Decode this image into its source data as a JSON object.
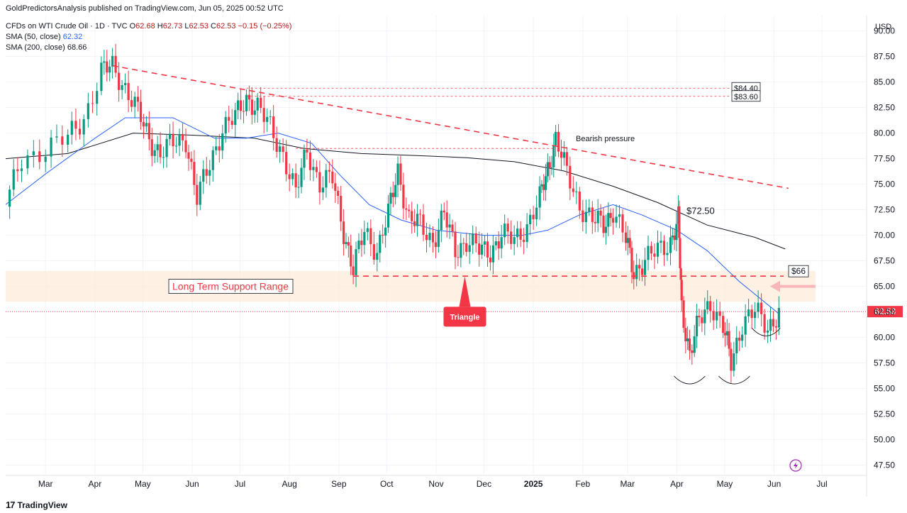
{
  "header": {
    "publisher": "GoldPredictorsAnalysis published on TradingView.com, Jun 05, 2025 00:52 UTC",
    "symbol": "CFDs on WTI Crude Oil · 1D · TVC",
    "ohlc": {
      "o_label": "O",
      "o": "62.68",
      "h_label": "H",
      "h": "62.73",
      "l_label": "L",
      "l": "62.53",
      "c_label": "C",
      "c": "62.53",
      "change": "−0.15 (−0.25%)"
    },
    "sma50_label": "SMA (50, close)",
    "sma50_value": "62.32",
    "sma200_label": "SMA (200, close)",
    "sma200_value": "68.66"
  },
  "branding": {
    "logo": "17",
    "name": "TradingView"
  },
  "colors": {
    "up": "#089981",
    "down": "#f23645",
    "sma50": "#2962ff",
    "sma200": "#131722",
    "resistance": "#f23645",
    "support_zone": "#fdebd8",
    "price_tag": "#f23645"
  },
  "chart_data": {
    "type": "candlestick",
    "title": "",
    "currency": "USD",
    "y_range": [
      46.5,
      91.5
    ],
    "y_ticks": [
      "90.00",
      "87.50",
      "85.00",
      "82.50",
      "80.00",
      "77.50",
      "75.00",
      "72.50",
      "70.00",
      "67.50",
      "65.00",
      "62.50",
      "60.00",
      "57.50",
      "55.00",
      "52.50",
      "50.00",
      "47.50"
    ],
    "x_months": [
      {
        "label": "Mar",
        "date": "2024-03-01"
      },
      {
        "label": "Apr",
        "date": "2024-04-01"
      },
      {
        "label": "May",
        "date": "2024-05-01"
      },
      {
        "label": "Jun",
        "date": "2024-06-01"
      },
      {
        "label": "Jul",
        "date": "2024-07-01"
      },
      {
        "label": "Aug",
        "date": "2024-08-01"
      },
      {
        "label": "Sep",
        "date": "2024-09-01"
      },
      {
        "label": "Oct",
        "date": "2024-10-01"
      },
      {
        "label": "Nov",
        "date": "2024-11-01"
      },
      {
        "label": "Dec",
        "date": "2024-12-01"
      },
      {
        "label": "2025",
        "date": "2025-01-01",
        "bold": true
      },
      {
        "label": "Feb",
        "date": "2025-02-01"
      },
      {
        "label": "Mar",
        "date": "2025-03-01"
      },
      {
        "label": "Apr",
        "date": "2025-04-01"
      },
      {
        "label": "May",
        "date": "2025-05-01"
      },
      {
        "label": "Jun",
        "date": "2025-06-01"
      },
      {
        "label": "Jul",
        "date": "2025-07-01"
      }
    ],
    "price_path": [
      [
        "2024-02-05",
        72.8
      ],
      [
        "2024-02-15",
        77.5
      ],
      [
        "2024-03-01",
        78.5
      ],
      [
        "2024-03-15",
        79.5
      ],
      [
        "2024-03-25",
        81.5
      ],
      [
        "2024-04-05",
        86.0
      ],
      [
        "2024-04-12",
        86.5
      ],
      [
        "2024-04-20",
        84.5
      ],
      [
        "2024-04-28",
        82.0
      ],
      [
        "2024-05-05",
        79.5
      ],
      [
        "2024-05-12",
        78.0
      ],
      [
        "2024-05-20",
        79.0
      ],
      [
        "2024-05-28",
        79.5
      ],
      [
        "2024-06-04",
        73.5
      ],
      [
        "2024-06-12",
        77.0
      ],
      [
        "2024-06-20",
        80.5
      ],
      [
        "2024-06-28",
        81.5
      ],
      [
        "2024-07-05",
        83.5
      ],
      [
        "2024-07-12",
        82.5
      ],
      [
        "2024-07-20",
        80.5
      ],
      [
        "2024-07-28",
        78.0
      ],
      [
        "2024-08-05",
        74.0
      ],
      [
        "2024-08-12",
        78.5
      ],
      [
        "2024-08-20",
        75.0
      ],
      [
        "2024-08-28",
        75.5
      ],
      [
        "2024-09-04",
        70.5
      ],
      [
        "2024-09-10",
        66.5
      ],
      [
        "2024-09-17",
        70.5
      ],
      [
        "2024-09-25",
        68.5
      ],
      [
        "2024-10-02",
        72.0
      ],
      [
        "2024-10-08",
        76.5
      ],
      [
        "2024-10-15",
        71.5
      ],
      [
        "2024-10-22",
        71.0
      ],
      [
        "2024-10-30",
        69.5
      ],
      [
        "2024-11-06",
        72.0
      ],
      [
        "2024-11-13",
        68.5
      ],
      [
        "2024-11-20",
        69.5
      ],
      [
        "2024-11-28",
        68.5
      ],
      [
        "2024-12-05",
        68.5
      ],
      [
        "2024-12-12",
        70.0
      ],
      [
        "2024-12-20",
        69.5
      ],
      [
        "2024-12-28",
        71.0
      ],
      [
        "2025-01-05",
        73.5
      ],
      [
        "2025-01-10",
        76.5
      ],
      [
        "2025-01-15",
        79.5
      ],
      [
        "2025-01-22",
        76.0
      ],
      [
        "2025-01-30",
        73.0
      ],
      [
        "2025-02-07",
        71.5
      ],
      [
        "2025-02-14",
        71.0
      ],
      [
        "2025-02-20",
        72.5
      ],
      [
        "2025-02-28",
        69.5
      ],
      [
        "2025-03-05",
        66.5
      ],
      [
        "2025-03-12",
        67.5
      ],
      [
        "2025-03-20",
        68.5
      ],
      [
        "2025-03-28",
        69.5
      ],
      [
        "2025-04-02",
        71.5
      ],
      [
        "2025-04-04",
        63.0
      ],
      [
        "2025-04-09",
        58.5
      ],
      [
        "2025-04-15",
        61.5
      ],
      [
        "2025-04-22",
        63.5
      ],
      [
        "2025-04-30",
        61.0
      ],
      [
        "2025-05-05",
        57.5
      ],
      [
        "2025-05-12",
        61.5
      ],
      [
        "2025-05-20",
        62.5
      ],
      [
        "2025-05-28",
        61.0
      ],
      [
        "2025-06-04",
        62.53
      ]
    ],
    "candle_samples_per_segment": 4,
    "sma50": [
      [
        "2024-02-05",
        73.0
      ],
      [
        "2024-03-01",
        76.0
      ],
      [
        "2024-04-01",
        79.5
      ],
      [
        "2024-04-20",
        81.5
      ],
      [
        "2024-05-20",
        81.5
      ],
      [
        "2024-06-15",
        79.5
      ],
      [
        "2024-07-05",
        79.5
      ],
      [
        "2024-07-25",
        80.0
      ],
      [
        "2024-08-15",
        79.0
      ],
      [
        "2024-09-01",
        76.0
      ],
      [
        "2024-09-20",
        73.0
      ],
      [
        "2024-10-10",
        71.5
      ],
      [
        "2024-11-01",
        70.5
      ],
      [
        "2024-12-01",
        70.0
      ],
      [
        "2024-12-25",
        70.0
      ],
      [
        "2025-01-10",
        70.5
      ],
      [
        "2025-01-30",
        72.0
      ],
      [
        "2025-02-20",
        73.0
      ],
      [
        "2025-03-10",
        72.0
      ],
      [
        "2025-04-01",
        70.5
      ],
      [
        "2025-04-20",
        68.5
      ],
      [
        "2025-05-10",
        65.5
      ],
      [
        "2025-06-04",
        62.32
      ]
    ],
    "sma200": [
      [
        "2024-02-05",
        77.5
      ],
      [
        "2024-03-15",
        78.0
      ],
      [
        "2024-04-25",
        80.0
      ],
      [
        "2024-06-01",
        79.8
      ],
      [
        "2024-07-10",
        79.5
      ],
      [
        "2024-08-10",
        78.5
      ],
      [
        "2024-09-15",
        78.0
      ],
      [
        "2024-10-20",
        77.8
      ],
      [
        "2024-11-20",
        77.6
      ],
      [
        "2024-12-20",
        77.2
      ],
      [
        "2025-01-20",
        76.3
      ],
      [
        "2025-02-20",
        74.8
      ],
      [
        "2025-03-20",
        73.2
      ],
      [
        "2025-04-20",
        71.0
      ],
      [
        "2025-05-20",
        69.8
      ],
      [
        "2025-06-08",
        68.66
      ]
    ],
    "annotations": {
      "downtrend_line": {
        "from": [
          "2024-04-12",
          86.6
        ],
        "to": [
          "2025-06-10",
          74.6
        ]
      },
      "resistance_84_40": {
        "label": "$84.40",
        "value": 84.4,
        "from": "2024-07-05"
      },
      "resistance_83_60": {
        "label": "$83.60",
        "value": 83.6,
        "from": "2024-07-05"
      },
      "level_78_50": {
        "value": 78.5,
        "from": "2024-08-05",
        "to": "2025-01-15"
      },
      "support_66": {
        "label": "$66",
        "value": 66.0,
        "from": "2024-09-10",
        "to": "2025-06-01"
      },
      "support_zone": {
        "label": "Long Term Support Range",
        "low": 63.5,
        "high": 66.5
      },
      "triangle_label": "Triangle",
      "bearish_label": "Bearish pressure",
      "peak_label": "$72.50",
      "current_price_tag": "62.53"
    }
  }
}
